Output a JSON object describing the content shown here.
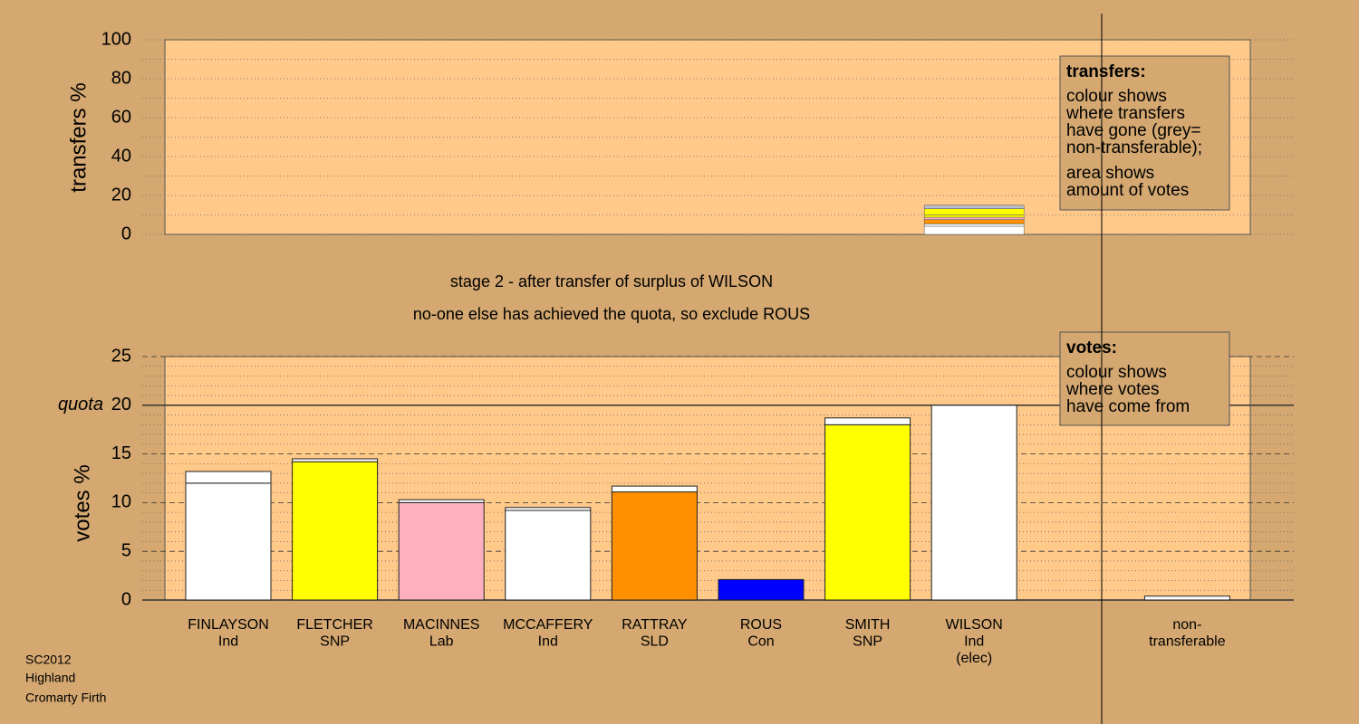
{
  "chart_data": [
    {
      "type": "stacked_transfer_bar",
      "ylabel": "transfers %",
      "ylim": [
        0,
        100
      ],
      "yticks": [
        0,
        20,
        40,
        60,
        80,
        100
      ],
      "minor_yticks": [
        10,
        30,
        50,
        70,
        90
      ],
      "segments": [
        {
          "color": "#ffffff",
          "value": 4.2
        },
        {
          "color": "#ffffff",
          "value": 1.2
        },
        {
          "color": "#ff9000",
          "value": 2.2
        },
        {
          "color": "#ffb0c0",
          "value": 1.2
        },
        {
          "color": "#ffff00",
          "value": 1.2
        },
        {
          "color": "#ffff00",
          "value": 3.2
        },
        {
          "color": "#b8bcc8",
          "value": 1.8
        }
      ],
      "legend": {
        "title": "transfers:",
        "lines": [
          "colour shows",
          "where transfers",
          "have gone (grey=",
          "non-transferable);",
          "area shows",
          "amount of votes"
        ]
      }
    },
    {
      "type": "stacked_bar",
      "ylabel": "votes %",
      "ylim": [
        0,
        25
      ],
      "yticks": [
        0,
        5,
        10,
        15,
        20,
        25
      ],
      "minor_yticks": [
        1,
        2,
        3,
        4,
        6,
        7,
        8,
        9,
        11,
        12,
        13,
        14,
        16,
        17,
        18,
        19,
        21,
        22,
        23,
        24
      ],
      "quota": {
        "label": "quota",
        "value": 20
      },
      "categories": [
        [
          "FINLAYSON",
          "Ind"
        ],
        [
          "FLETCHER",
          "SNP"
        ],
        [
          "MACINNES",
          "Lab"
        ],
        [
          "MCCAFFERY",
          "Ind"
        ],
        [
          "RATTRAY",
          "SLD"
        ],
        [
          "ROUS",
          "Con"
        ],
        [
          "SMITH",
          "SNP"
        ],
        [
          "WILSON",
          "Ind",
          "(elec)"
        ],
        null,
        [
          "non-",
          "transferable"
        ]
      ],
      "colors": [
        "#ffffff",
        "#ffff00",
        "#ffb0c0",
        "#ffffff",
        "#ff9000",
        "#0000ff",
        "#ffff00",
        "#ffffff",
        null,
        "#ffffff"
      ],
      "values": [
        12.0,
        14.2,
        10.0,
        9.2,
        11.1,
        2.1,
        18.0,
        20.0,
        null,
        0
      ],
      "transfer_values": [
        1.2,
        0.3,
        0.3,
        0.3,
        0.6,
        0,
        0.7,
        0,
        null,
        0.4
      ],
      "legend": {
        "title": "votes:",
        "lines": [
          "colour shows",
          "where votes",
          "have come from"
        ]
      }
    }
  ],
  "notes": [
    "stage 2 - after transfer of surplus of WILSON",
    "no-one else has achieved the quota, so exclude ROUS"
  ],
  "footer": [
    "SC2012",
    "Highland",
    "Cromarty Firth"
  ]
}
